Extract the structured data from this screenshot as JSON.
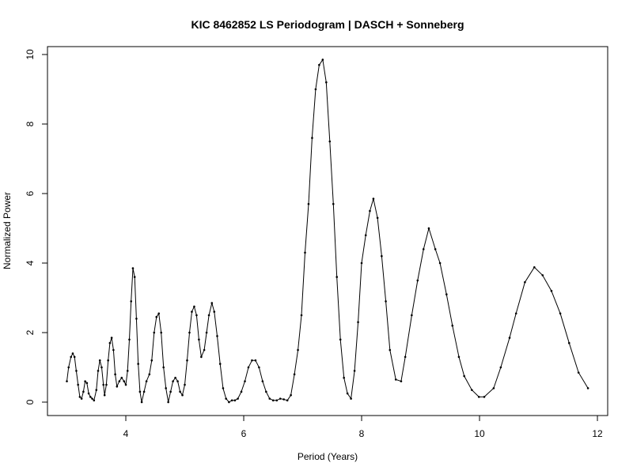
{
  "chart_data": {
    "type": "line",
    "title": "KIC 8462852 LS Periodogram | DASCH + Sonneberg",
    "x_label": "Period (Years)",
    "y_label": "Normalized Power",
    "xlim": [
      2.671,
      12.174
    ],
    "ylim": [
      -0.386,
      10.227
    ],
    "xticks": [
      4,
      6,
      8,
      10,
      12
    ],
    "yticks": [
      0,
      2,
      4,
      6,
      8,
      10
    ],
    "color": "#000000",
    "x": [
      3.0,
      3.03,
      3.07,
      3.1,
      3.13,
      3.16,
      3.19,
      3.22,
      3.25,
      3.28,
      3.31,
      3.34,
      3.37,
      3.4,
      3.43,
      3.46,
      3.5,
      3.53,
      3.56,
      3.59,
      3.62,
      3.64,
      3.67,
      3.7,
      3.73,
      3.76,
      3.79,
      3.82,
      3.85,
      3.89,
      3.93,
      3.97,
      4.0,
      4.03,
      4.06,
      4.09,
      4.12,
      4.15,
      4.18,
      4.21,
      4.24,
      4.27,
      4.31,
      4.35,
      4.4,
      4.44,
      4.48,
      4.52,
      4.56,
      4.6,
      4.64,
      4.68,
      4.72,
      4.76,
      4.8,
      4.84,
      4.88,
      4.92,
      4.96,
      5.0,
      5.04,
      5.08,
      5.12,
      5.16,
      5.2,
      5.24,
      5.28,
      5.33,
      5.37,
      5.41,
      5.46,
      5.5,
      5.55,
      5.6,
      5.65,
      5.7,
      5.75,
      5.8,
      5.85,
      5.9,
      5.96,
      6.02,
      6.08,
      6.14,
      6.2,
      6.26,
      6.32,
      6.38,
      6.44,
      6.5,
      6.56,
      6.62,
      6.68,
      6.74,
      6.8,
      6.86,
      6.92,
      6.98,
      7.04,
      7.1,
      7.16,
      7.22,
      7.28,
      7.34,
      7.4,
      7.46,
      7.52,
      7.58,
      7.64,
      7.7,
      7.76,
      7.82,
      7.88,
      7.94,
      8.0,
      8.07,
      8.14,
      8.2,
      8.27,
      8.34,
      8.41,
      8.48,
      8.58,
      8.67,
      8.74,
      8.85,
      8.95,
      9.05,
      9.14,
      9.25,
      9.33,
      9.44,
      9.54,
      9.65,
      9.74,
      9.87,
      9.99,
      10.08,
      10.24,
      10.36,
      10.51,
      10.62,
      10.77,
      10.93,
      11.07,
      11.22,
      11.37,
      11.52,
      11.68,
      11.84
    ],
    "values": [
      0.6,
      1.0,
      1.3,
      1.4,
      1.3,
      0.9,
      0.5,
      0.15,
      0.1,
      0.3,
      0.6,
      0.55,
      0.25,
      0.15,
      0.1,
      0.05,
      0.35,
      0.9,
      1.2,
      1.0,
      0.5,
      0.2,
      0.5,
      1.2,
      1.7,
      1.85,
      1.5,
      0.8,
      0.45,
      0.6,
      0.7,
      0.6,
      0.5,
      0.9,
      1.8,
      2.9,
      3.85,
      3.6,
      2.4,
      1.1,
      0.3,
      0.0,
      0.3,
      0.6,
      0.8,
      1.2,
      2.0,
      2.45,
      2.55,
      2.0,
      1.0,
      0.4,
      0.0,
      0.3,
      0.6,
      0.7,
      0.6,
      0.3,
      0.2,
      0.5,
      1.2,
      2.0,
      2.6,
      2.75,
      2.5,
      1.8,
      1.3,
      1.5,
      2.0,
      2.5,
      2.85,
      2.6,
      1.9,
      1.1,
      0.4,
      0.1,
      0.0,
      0.05,
      0.05,
      0.1,
      0.3,
      0.6,
      1.0,
      1.2,
      1.2,
      1.0,
      0.6,
      0.3,
      0.1,
      0.05,
      0.05,
      0.1,
      0.08,
      0.05,
      0.2,
      0.8,
      1.5,
      2.5,
      4.3,
      5.7,
      7.6,
      9.0,
      9.7,
      9.85,
      9.2,
      7.5,
      5.7,
      3.6,
      1.8,
      0.7,
      0.25,
      0.1,
      0.9,
      2.3,
      4.0,
      4.8,
      5.5,
      5.85,
      5.3,
      4.2,
      2.9,
      1.5,
      0.65,
      0.6,
      1.3,
      2.5,
      3.5,
      4.4,
      5.0,
      4.4,
      4.0,
      3.1,
      2.2,
      1.3,
      0.75,
      0.35,
      0.15,
      0.15,
      0.4,
      1.0,
      1.85,
      2.55,
      3.45,
      3.88,
      3.65,
      3.2,
      2.55,
      1.7,
      0.85,
      0.4
    ]
  }
}
